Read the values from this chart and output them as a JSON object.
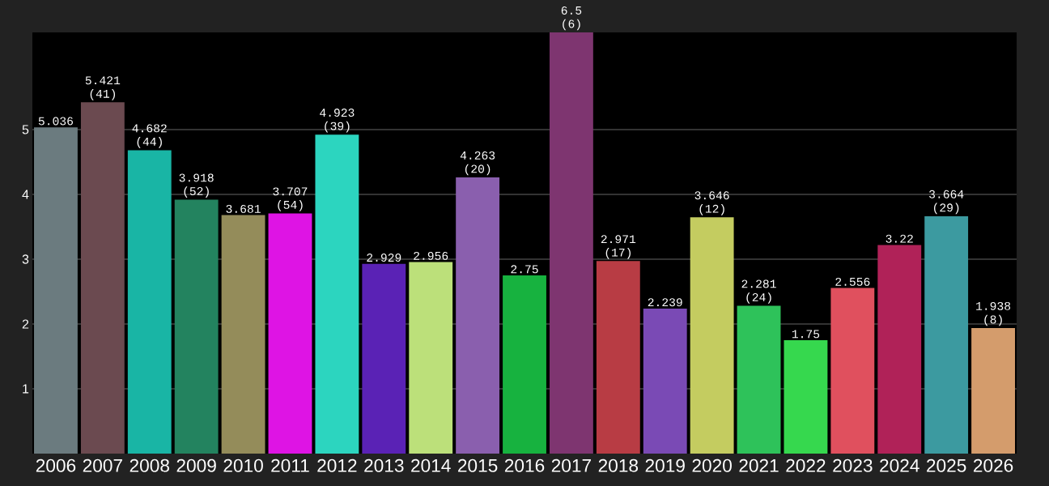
{
  "chart_data": {
    "type": "bar",
    "categories": [
      "2006",
      "2007",
      "2008",
      "2009",
      "2010",
      "2011",
      "2012",
      "2013",
      "2014",
      "2015",
      "2016",
      "2017",
      "2018",
      "2019",
      "2020",
      "2021",
      "2022",
      "2023",
      "2024",
      "2025",
      "2026"
    ],
    "values": [
      5.036,
      5.421,
      4.682,
      3.918,
      3.681,
      3.707,
      4.923,
      2.929,
      2.956,
      4.263,
      2.75,
      6.5,
      2.971,
      2.239,
      3.646,
      2.281,
      1.75,
      2.556,
      3.22,
      3.664,
      1.938
    ],
    "value_labels": [
      "5.036",
      "5.421 (41)",
      "4.682 (44)",
      "3.918 (52)",
      "3.681",
      "3.707 (54)",
      "4.923 (39)",
      "2.929",
      "2.956",
      "4.263 (20)",
      "2.75",
      "6.5 (6)",
      "2.971 (17)",
      "2.239",
      "3.646 (12)",
      "2.281 (24)",
      "1.75",
      "2.556",
      "3.22",
      "3.664 (29)",
      "1.938 (8)"
    ],
    "colors": [
      "#6b7b7f",
      "#6b4a50",
      "#19b5a5",
      "#23835f",
      "#948c5a",
      "#de14e4",
      "#2cd5bf",
      "#5a22b5",
      "#bce07a",
      "#8a5fae",
      "#17b23f",
      "#7e3570",
      "#b83c44",
      "#7a4ab5",
      "#c4cc60",
      "#2ec25a",
      "#36d84e",
      "#e0505e",
      "#b02258",
      "#3c9aa0",
      "#d49c6c"
    ],
    "ylim": [
      0,
      6.5
    ],
    "yticks": [
      1,
      2,
      3,
      4,
      5
    ],
    "grid": "y"
  }
}
